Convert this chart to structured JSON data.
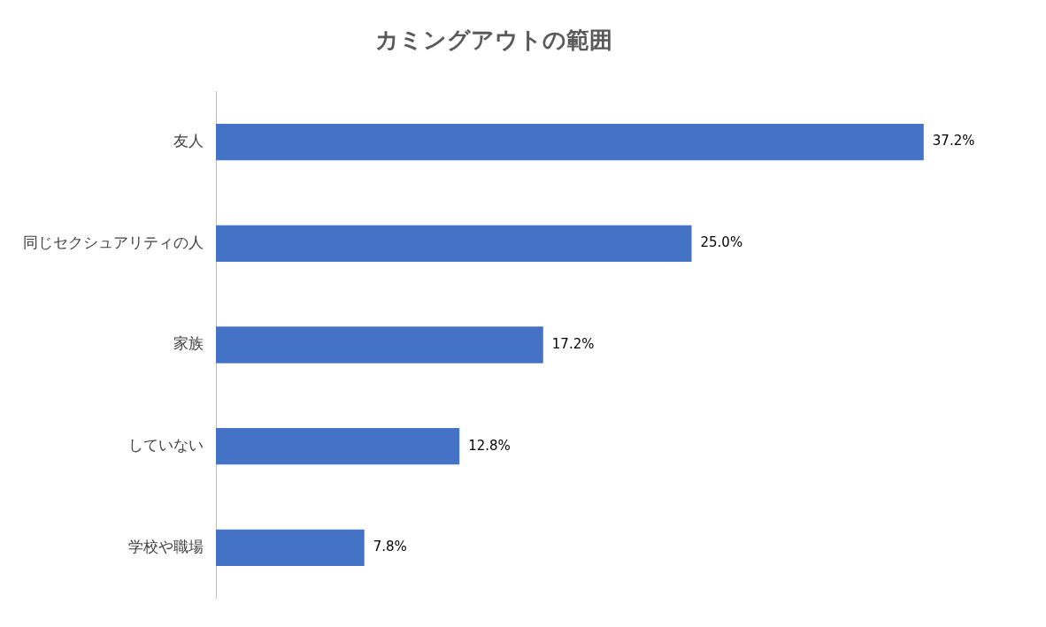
{
  "chart_data": {
    "type": "bar",
    "orientation": "horizontal",
    "title": "カミングアウトの範囲",
    "categories": [
      "友人",
      "同じセクシュアリティの人",
      "家族",
      "していない",
      "学校や職場"
    ],
    "values": [
      37.2,
      25.0,
      17.2,
      12.8,
      7.8
    ],
    "color": "#4472c4",
    "value_labels": [
      "37.2%",
      "25.0%",
      "17.2%",
      "12.8%",
      "7.8%"
    ]
  }
}
